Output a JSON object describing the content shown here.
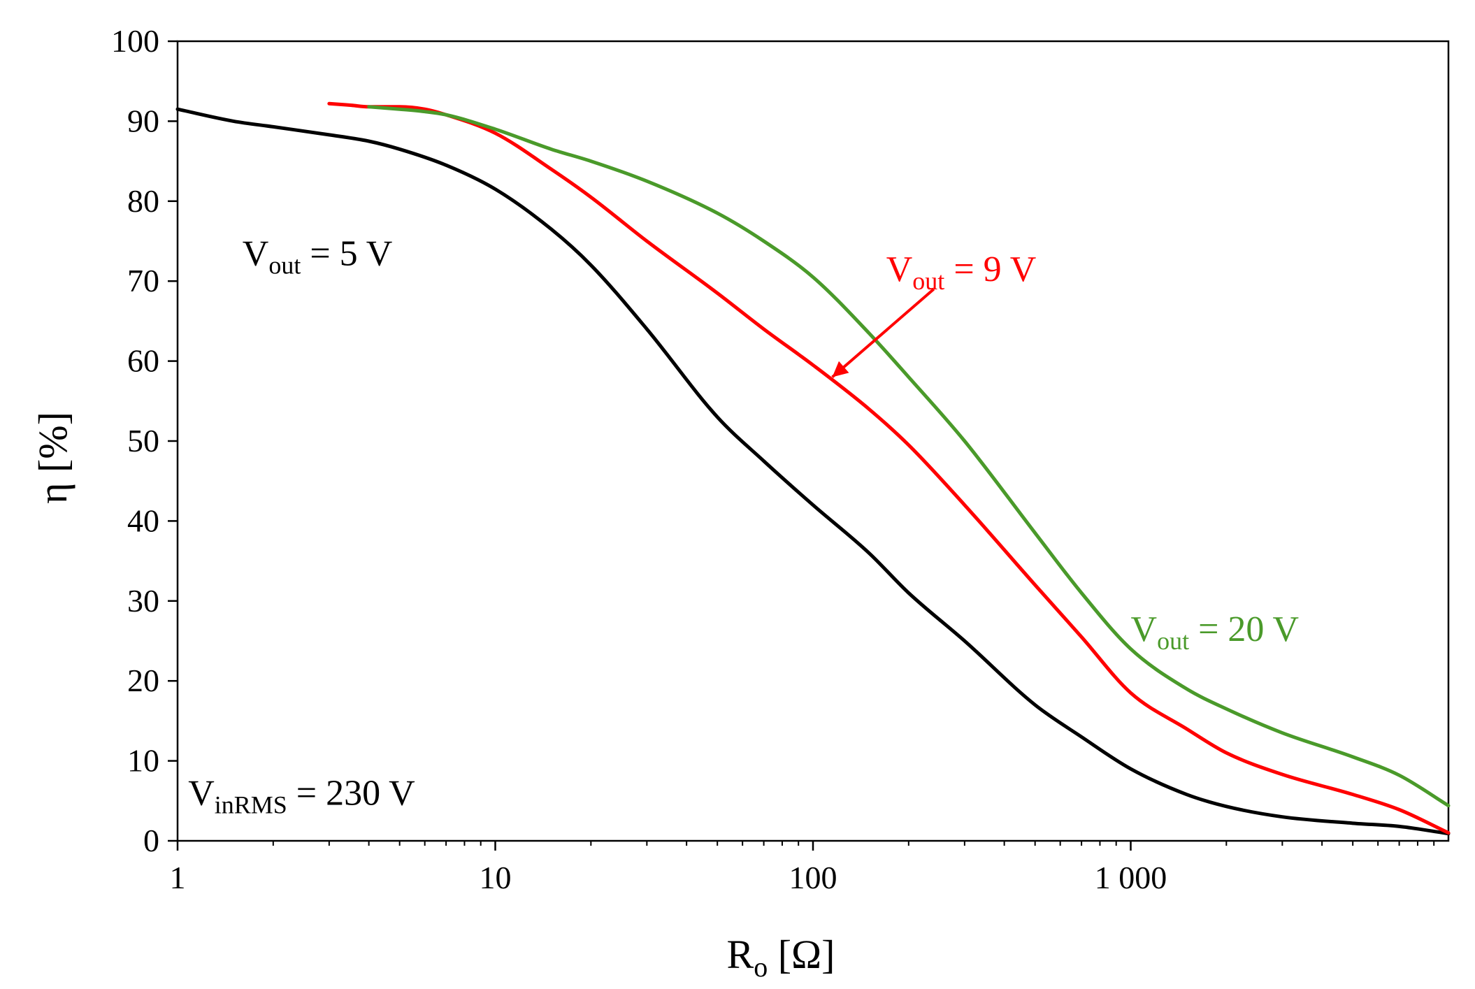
{
  "chart_data": {
    "type": "line",
    "xscale": "log",
    "xlim": [
      1,
      10000
    ],
    "ylim": [
      0,
      100
    ],
    "xlabel": {
      "main": "R",
      "sub": "o",
      "rest": " [Ω]"
    },
    "ylabel": "η [%]",
    "x_ticks": [
      {
        "value": 1,
        "label": "1"
      },
      {
        "value": 10,
        "label": "10"
      },
      {
        "value": 100,
        "label": "100"
      },
      {
        "value": 1000,
        "label": "1 000"
      }
    ],
    "y_ticks": [
      {
        "value": 0,
        "label": "0"
      },
      {
        "value": 10,
        "label": "10"
      },
      {
        "value": 20,
        "label": "20"
      },
      {
        "value": 30,
        "label": "30"
      },
      {
        "value": 40,
        "label": "40"
      },
      {
        "value": 50,
        "label": "50"
      },
      {
        "value": 60,
        "label": "60"
      },
      {
        "value": 70,
        "label": "70"
      },
      {
        "value": 80,
        "label": "80"
      },
      {
        "value": 90,
        "label": "90"
      },
      {
        "value": 100,
        "label": "100"
      }
    ],
    "series": [
      {
        "name": "Vout = 5 V",
        "color": "#000000",
        "x": [
          1,
          1.5,
          2,
          3,
          4,
          5,
          7,
          10,
          15,
          20,
          30,
          50,
          70,
          100,
          150,
          200,
          300,
          500,
          700,
          1000,
          1500,
          2000,
          3000,
          5000,
          7000,
          10000
        ],
        "y": [
          91.5,
          90,
          89.3,
          88.3,
          87.5,
          86.5,
          84.5,
          81.5,
          76.5,
          72,
          64,
          53,
          47.5,
          42,
          36,
          31,
          25,
          17,
          13,
          9,
          5.8,
          4.3,
          3,
          2.2,
          1.8,
          0.9
        ]
      },
      {
        "name": "Vout = 9 V",
        "color": "#ff0000",
        "x": [
          3,
          3.5,
          4,
          5,
          6,
          7,
          10,
          15,
          20,
          30,
          50,
          70,
          100,
          150,
          200,
          300,
          500,
          700,
          1000,
          1500,
          2000,
          3000,
          5000,
          7000,
          10000
        ],
        "y": [
          92.2,
          92,
          91.8,
          91.8,
          91.5,
          90.8,
          88.5,
          84,
          80.5,
          75,
          68.5,
          64,
          59.5,
          54,
          49.5,
          42,
          32,
          25.5,
          18.5,
          14,
          11,
          8.3,
          5.8,
          3.9,
          1
        ]
      },
      {
        "name": "Vout = 20 V",
        "color": "#4a9a2a",
        "x": [
          4,
          5,
          6,
          7,
          10,
          15,
          20,
          30,
          50,
          70,
          100,
          150,
          200,
          300,
          500,
          700,
          1000,
          1500,
          2000,
          3000,
          5000,
          7000,
          10000
        ],
        "y": [
          91.8,
          91.5,
          91.2,
          90.8,
          89,
          86.5,
          85,
          82.5,
          78.5,
          75,
          70.5,
          63.5,
          58,
          50,
          38.5,
          31,
          24,
          19,
          16.5,
          13.5,
          10.5,
          8.2,
          4.4
        ]
      }
    ],
    "annotations": [
      {
        "main": "V",
        "sub": "out",
        "rest": " = 5 V",
        "color": "#000000",
        "at": [
          1.6,
          72
        ]
      },
      {
        "main": "V",
        "sub": "out",
        "rest": " = 9 V",
        "color": "#ff0000",
        "at": [
          170,
          70
        ]
      },
      {
        "main": "V",
        "sub": "out",
        "rest": " = 20 V",
        "color": "#4a9a2a",
        "at": [
          1000,
          25
        ]
      },
      {
        "main": "V",
        "sub": "inRMS",
        "rest": " = 230 V",
        "color": "#000000",
        "at": [
          1.08,
          4.5
        ]
      }
    ],
    "arrow": {
      "from": [
        240,
        69
      ],
      "to": [
        115,
        58
      ],
      "color": "#ff0000"
    }
  }
}
